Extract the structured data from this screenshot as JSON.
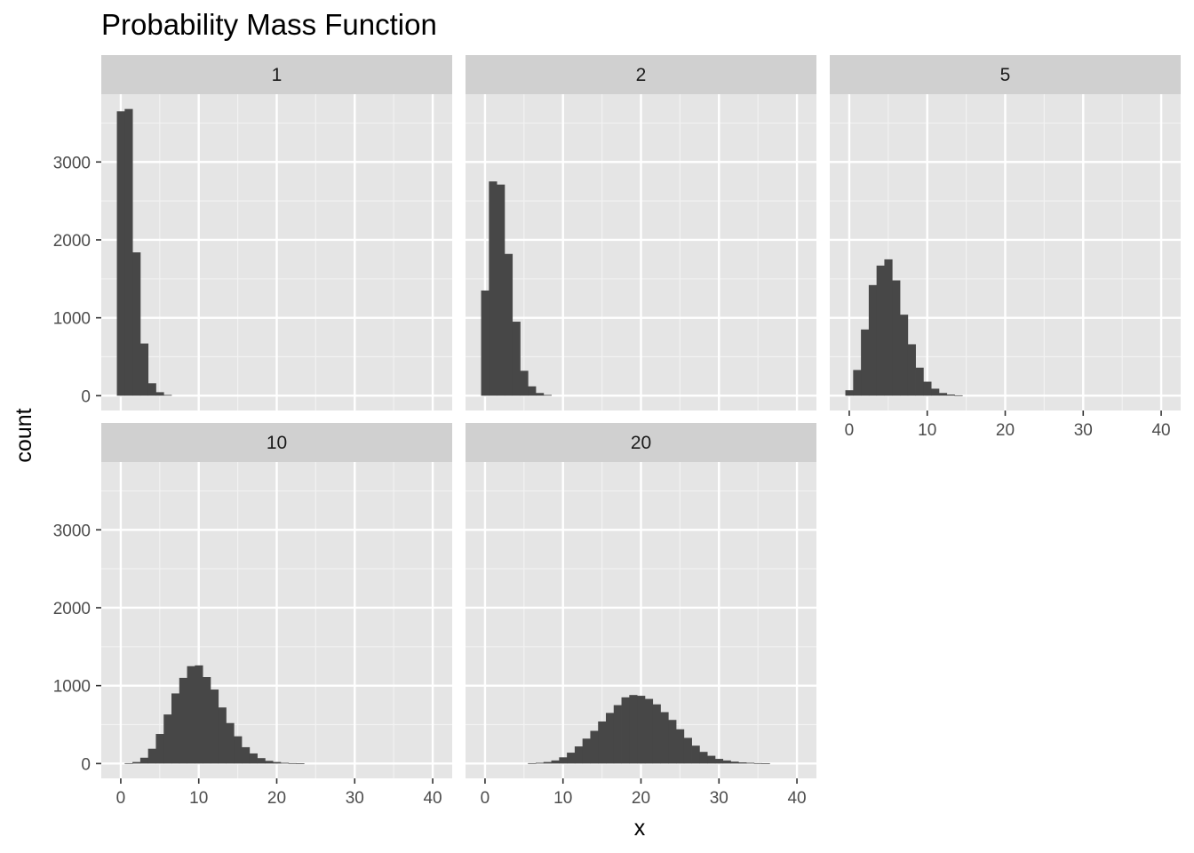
{
  "chart_data": {
    "type": "bar",
    "title": "Probability Mass Function",
    "xlabel": "x",
    "ylabel": "count",
    "xlim": [
      -2.5,
      42.5
    ],
    "ylim": [
      -190,
      3870
    ],
    "x_ticks": [
      0,
      10,
      20,
      30,
      40
    ],
    "y_ticks": [
      0,
      1000,
      2000,
      3000
    ],
    "bin_width": 1,
    "bar_color": "#474747",
    "panel_bg": "#e5e5e5",
    "strip_bg": "#d0d0d0",
    "facets": [
      {
        "label": "1",
        "bins": [
          {
            "x": 0,
            "count": 3650
          },
          {
            "x": 1,
            "count": 3680
          },
          {
            "x": 2,
            "count": 1840
          },
          {
            "x": 3,
            "count": 670
          },
          {
            "x": 4,
            "count": 160
          },
          {
            "x": 5,
            "count": 45
          },
          {
            "x": 6,
            "count": 10
          }
        ]
      },
      {
        "label": "2",
        "bins": [
          {
            "x": 0,
            "count": 1350
          },
          {
            "x": 1,
            "count": 2750
          },
          {
            "x": 2,
            "count": 2710
          },
          {
            "x": 3,
            "count": 1820
          },
          {
            "x": 4,
            "count": 950
          },
          {
            "x": 5,
            "count": 320
          },
          {
            "x": 6,
            "count": 120
          },
          {
            "x": 7,
            "count": 35
          },
          {
            "x": 8,
            "count": 10
          }
        ]
      },
      {
        "label": "5",
        "bins": [
          {
            "x": 0,
            "count": 70
          },
          {
            "x": 1,
            "count": 330
          },
          {
            "x": 2,
            "count": 850
          },
          {
            "x": 3,
            "count": 1420
          },
          {
            "x": 4,
            "count": 1670
          },
          {
            "x": 5,
            "count": 1750
          },
          {
            "x": 6,
            "count": 1480
          },
          {
            "x": 7,
            "count": 1040
          },
          {
            "x": 8,
            "count": 660
          },
          {
            "x": 9,
            "count": 360
          },
          {
            "x": 10,
            "count": 180
          },
          {
            "x": 11,
            "count": 90
          },
          {
            "x": 12,
            "count": 35
          },
          {
            "x": 13,
            "count": 15
          },
          {
            "x": 14,
            "count": 5
          }
        ]
      },
      {
        "label": "10",
        "bins": [
          {
            "x": 1,
            "count": 5
          },
          {
            "x": 2,
            "count": 20
          },
          {
            "x": 3,
            "count": 75
          },
          {
            "x": 4,
            "count": 190
          },
          {
            "x": 5,
            "count": 380
          },
          {
            "x": 6,
            "count": 630
          },
          {
            "x": 7,
            "count": 900
          },
          {
            "x": 8,
            "count": 1100
          },
          {
            "x": 9,
            "count": 1250
          },
          {
            "x": 10,
            "count": 1260
          },
          {
            "x": 11,
            "count": 1110
          },
          {
            "x": 12,
            "count": 950
          },
          {
            "x": 13,
            "count": 720
          },
          {
            "x": 14,
            "count": 520
          },
          {
            "x": 15,
            "count": 350
          },
          {
            "x": 16,
            "count": 210
          },
          {
            "x": 17,
            "count": 130
          },
          {
            "x": 18,
            "count": 70
          },
          {
            "x": 19,
            "count": 35
          },
          {
            "x": 20,
            "count": 20
          },
          {
            "x": 21,
            "count": 10
          },
          {
            "x": 22,
            "count": 5
          },
          {
            "x": 23,
            "count": 3
          }
        ]
      },
      {
        "label": "20",
        "bins": [
          {
            "x": 6,
            "count": 5
          },
          {
            "x": 7,
            "count": 10
          },
          {
            "x": 8,
            "count": 20
          },
          {
            "x": 9,
            "count": 40
          },
          {
            "x": 10,
            "count": 80
          },
          {
            "x": 11,
            "count": 140
          },
          {
            "x": 12,
            "count": 220
          },
          {
            "x": 13,
            "count": 320
          },
          {
            "x": 14,
            "count": 420
          },
          {
            "x": 15,
            "count": 540
          },
          {
            "x": 16,
            "count": 650
          },
          {
            "x": 17,
            "count": 750
          },
          {
            "x": 18,
            "count": 850
          },
          {
            "x": 19,
            "count": 880
          },
          {
            "x": 20,
            "count": 870
          },
          {
            "x": 21,
            "count": 830
          },
          {
            "x": 22,
            "count": 760
          },
          {
            "x": 23,
            "count": 660
          },
          {
            "x": 24,
            "count": 560
          },
          {
            "x": 25,
            "count": 440
          },
          {
            "x": 26,
            "count": 330
          },
          {
            "x": 27,
            "count": 230
          },
          {
            "x": 28,
            "count": 150
          },
          {
            "x": 29,
            "count": 100
          },
          {
            "x": 30,
            "count": 60
          },
          {
            "x": 31,
            "count": 40
          },
          {
            "x": 32,
            "count": 25
          },
          {
            "x": 33,
            "count": 15
          },
          {
            "x": 34,
            "count": 10
          },
          {
            "x": 35,
            "count": 5
          },
          {
            "x": 36,
            "count": 3
          }
        ]
      }
    ]
  }
}
